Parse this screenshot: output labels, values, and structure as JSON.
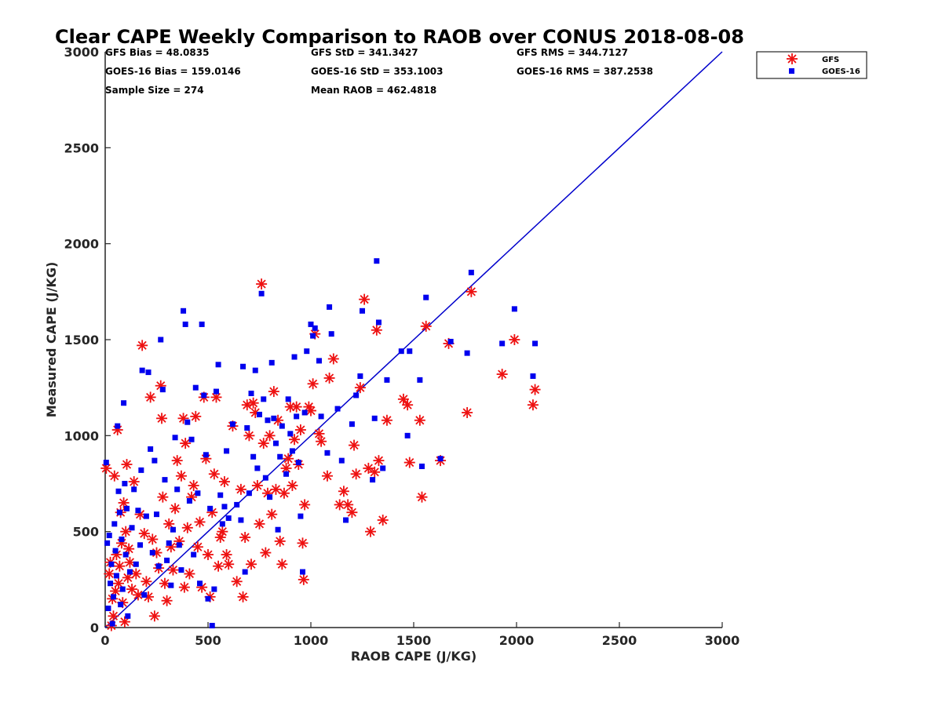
{
  "chart_data": {
    "type": "scatter",
    "title": "Clear CAPE Weekly Comparison to RAOB over CONUS 2018-08-08",
    "xlabel": "RAOB CAPE (J/KG)",
    "ylabel": "Measured CAPE (J/KG)",
    "xlim": [
      0,
      3000
    ],
    "ylim": [
      0,
      3000
    ],
    "xticks": [
      "0",
      "500",
      "1000",
      "1500",
      "2000",
      "2500",
      "3000"
    ],
    "yticks": [
      "0",
      "500",
      "1000",
      "1500",
      "2000",
      "2500",
      "3000"
    ],
    "grid": false,
    "legend_position": "top-right",
    "stats": [
      [
        "GFS Bias = 48.0835",
        "GFS StD = 341.3427",
        "GFS RMS = 344.7127"
      ],
      [
        "GOES-16 Bias = 159.0146",
        "GOES-16 StD = 353.1003",
        "GOES-16 RMS = 387.2538"
      ],
      [
        "Sample Size = 274",
        "Mean RAOB = 462.4818",
        ""
      ]
    ],
    "reference_line": {
      "x": [
        0,
        3000
      ],
      "y": [
        0,
        3000
      ],
      "color": "#0000cc"
    },
    "series": [
      {
        "name": "GFS",
        "marker": "asterisk",
        "color": "#ee1111",
        "points": [
          [
            5,
            830
          ],
          [
            20,
            280
          ],
          [
            25,
            340
          ],
          [
            30,
            10
          ],
          [
            35,
            150
          ],
          [
            40,
            60
          ],
          [
            45,
            790
          ],
          [
            50,
            190
          ],
          [
            55,
            380
          ],
          [
            60,
            1030
          ],
          [
            65,
            230
          ],
          [
            70,
            320
          ],
          [
            75,
            600
          ],
          [
            80,
            440
          ],
          [
            85,
            130
          ],
          [
            90,
            650
          ],
          [
            95,
            30
          ],
          [
            100,
            500
          ],
          [
            105,
            850
          ],
          [
            110,
            260
          ],
          [
            115,
            410
          ],
          [
            120,
            340
          ],
          [
            130,
            200
          ],
          [
            140,
            760
          ],
          [
            150,
            280
          ],
          [
            160,
            170
          ],
          [
            170,
            590
          ],
          [
            180,
            1470
          ],
          [
            190,
            490
          ],
          [
            200,
            240
          ],
          [
            210,
            160
          ],
          [
            220,
            1200
          ],
          [
            230,
            460
          ],
          [
            240,
            60
          ],
          [
            250,
            390
          ],
          [
            260,
            310
          ],
          [
            270,
            1260
          ],
          [
            275,
            1090
          ],
          [
            280,
            680
          ],
          [
            290,
            230
          ],
          [
            300,
            140
          ],
          [
            310,
            540
          ],
          [
            320,
            420
          ],
          [
            330,
            300
          ],
          [
            340,
            620
          ],
          [
            350,
            870
          ],
          [
            360,
            450
          ],
          [
            370,
            790
          ],
          [
            380,
            1090
          ],
          [
            385,
            210
          ],
          [
            390,
            960
          ],
          [
            400,
            520
          ],
          [
            410,
            280
          ],
          [
            420,
            680
          ],
          [
            430,
            740
          ],
          [
            440,
            1100
          ],
          [
            450,
            420
          ],
          [
            460,
            550
          ],
          [
            470,
            210
          ],
          [
            480,
            1200
          ],
          [
            490,
            880
          ],
          [
            500,
            380
          ],
          [
            510,
            160
          ],
          [
            520,
            600
          ],
          [
            530,
            800
          ],
          [
            540,
            1200
          ],
          [
            550,
            320
          ],
          [
            560,
            470
          ],
          [
            570,
            500
          ],
          [
            580,
            760
          ],
          [
            590,
            380
          ],
          [
            600,
            330
          ],
          [
            620,
            1050
          ],
          [
            640,
            240
          ],
          [
            660,
            720
          ],
          [
            670,
            160
          ],
          [
            680,
            470
          ],
          [
            690,
            1160
          ],
          [
            700,
            1000
          ],
          [
            710,
            330
          ],
          [
            720,
            1170
          ],
          [
            730,
            1120
          ],
          [
            740,
            740
          ],
          [
            750,
            540
          ],
          [
            760,
            1790
          ],
          [
            770,
            960
          ],
          [
            780,
            390
          ],
          [
            790,
            700
          ],
          [
            800,
            1000
          ],
          [
            810,
            590
          ],
          [
            820,
            1230
          ],
          [
            830,
            720
          ],
          [
            840,
            1080
          ],
          [
            850,
            450
          ],
          [
            860,
            330
          ],
          [
            870,
            700
          ],
          [
            880,
            830
          ],
          [
            890,
            880
          ],
          [
            900,
            1150
          ],
          [
            910,
            740
          ],
          [
            920,
            980
          ],
          [
            930,
            1150
          ],
          [
            940,
            850
          ],
          [
            950,
            1030
          ],
          [
            960,
            440
          ],
          [
            965,
            250
          ],
          [
            970,
            640
          ],
          [
            990,
            1150
          ],
          [
            1000,
            1130
          ],
          [
            1010,
            1270
          ],
          [
            1020,
            1530
          ],
          [
            1040,
            1010
          ],
          [
            1050,
            970
          ],
          [
            1080,
            790
          ],
          [
            1090,
            1300
          ],
          [
            1110,
            1400
          ],
          [
            1140,
            640
          ],
          [
            1160,
            710
          ],
          [
            1180,
            640
          ],
          [
            1200,
            600
          ],
          [
            1210,
            950
          ],
          [
            1220,
            800
          ],
          [
            1240,
            1250
          ],
          [
            1260,
            1710
          ],
          [
            1280,
            830
          ],
          [
            1290,
            500
          ],
          [
            1310,
            810
          ],
          [
            1320,
            1550
          ],
          [
            1330,
            870
          ],
          [
            1350,
            560
          ],
          [
            1370,
            1080
          ],
          [
            1450,
            1190
          ],
          [
            1470,
            1160
          ],
          [
            1480,
            860
          ],
          [
            1530,
            1080
          ],
          [
            1540,
            680
          ],
          [
            1560,
            1570
          ],
          [
            1630,
            870
          ],
          [
            1670,
            1480
          ],
          [
            1760,
            1120
          ],
          [
            1780,
            1750
          ],
          [
            1930,
            1320
          ],
          [
            1990,
            1500
          ],
          [
            2080,
            1160
          ],
          [
            2090,
            1240
          ]
        ]
      },
      {
        "name": "GOES-16",
        "marker": "square",
        "color": "#0000ee",
        "points": [
          [
            5,
            860
          ],
          [
            10,
            440
          ],
          [
            15,
            100
          ],
          [
            20,
            480
          ],
          [
            25,
            230
          ],
          [
            30,
            330
          ],
          [
            35,
            20
          ],
          [
            40,
            160
          ],
          [
            45,
            540
          ],
          [
            50,
            400
          ],
          [
            55,
            270
          ],
          [
            60,
            1050
          ],
          [
            65,
            710
          ],
          [
            70,
            600
          ],
          [
            75,
            120
          ],
          [
            80,
            460
          ],
          [
            85,
            200
          ],
          [
            90,
            1170
          ],
          [
            95,
            750
          ],
          [
            100,
            380
          ],
          [
            105,
            620
          ],
          [
            110,
            60
          ],
          [
            120,
            290
          ],
          [
            130,
            520
          ],
          [
            140,
            720
          ],
          [
            150,
            330
          ],
          [
            160,
            610
          ],
          [
            170,
            430
          ],
          [
            175,
            820
          ],
          [
            180,
            1340
          ],
          [
            190,
            170
          ],
          [
            200,
            580
          ],
          [
            210,
            1330
          ],
          [
            220,
            930
          ],
          [
            230,
            390
          ],
          [
            240,
            870
          ],
          [
            250,
            590
          ],
          [
            260,
            320
          ],
          [
            270,
            1500
          ],
          [
            280,
            1240
          ],
          [
            290,
            770
          ],
          [
            300,
            350
          ],
          [
            310,
            440
          ],
          [
            320,
            220
          ],
          [
            330,
            510
          ],
          [
            340,
            990
          ],
          [
            350,
            720
          ],
          [
            360,
            430
          ],
          [
            370,
            300
          ],
          [
            380,
            1650
          ],
          [
            390,
            1580
          ],
          [
            400,
            1070
          ],
          [
            410,
            660
          ],
          [
            420,
            980
          ],
          [
            430,
            380
          ],
          [
            440,
            1250
          ],
          [
            450,
            700
          ],
          [
            460,
            230
          ],
          [
            470,
            1580
          ],
          [
            480,
            1210
          ],
          [
            490,
            900
          ],
          [
            500,
            150
          ],
          [
            510,
            620
          ],
          [
            520,
            10
          ],
          [
            530,
            200
          ],
          [
            540,
            1230
          ],
          [
            550,
            1370
          ],
          [
            560,
            690
          ],
          [
            570,
            540
          ],
          [
            580,
            630
          ],
          [
            590,
            920
          ],
          [
            600,
            570
          ],
          [
            620,
            1060
          ],
          [
            640,
            640
          ],
          [
            660,
            560
          ],
          [
            670,
            1360
          ],
          [
            680,
            290
          ],
          [
            690,
            1040
          ],
          [
            700,
            700
          ],
          [
            710,
            1220
          ],
          [
            720,
            890
          ],
          [
            730,
            1340
          ],
          [
            740,
            830
          ],
          [
            750,
            1110
          ],
          [
            760,
            1740
          ],
          [
            770,
            1190
          ],
          [
            780,
            780
          ],
          [
            790,
            1080
          ],
          [
            800,
            680
          ],
          [
            810,
            1380
          ],
          [
            820,
            1090
          ],
          [
            830,
            960
          ],
          [
            840,
            510
          ],
          [
            850,
            890
          ],
          [
            860,
            1050
          ],
          [
            880,
            800
          ],
          [
            890,
            1190
          ],
          [
            900,
            1010
          ],
          [
            910,
            920
          ],
          [
            920,
            1410
          ],
          [
            930,
            1100
          ],
          [
            940,
            860
          ],
          [
            950,
            580
          ],
          [
            960,
            290
          ],
          [
            970,
            1120
          ],
          [
            980,
            1440
          ],
          [
            1000,
            1580
          ],
          [
            1010,
            1520
          ],
          [
            1020,
            1560
          ],
          [
            1040,
            1390
          ],
          [
            1050,
            1100
          ],
          [
            1080,
            910
          ],
          [
            1090,
            1670
          ],
          [
            1100,
            1530
          ],
          [
            1130,
            1140
          ],
          [
            1150,
            870
          ],
          [
            1170,
            560
          ],
          [
            1200,
            1060
          ],
          [
            1220,
            1210
          ],
          [
            1240,
            1310
          ],
          [
            1250,
            1650
          ],
          [
            1300,
            770
          ],
          [
            1310,
            1090
          ],
          [
            1320,
            1910
          ],
          [
            1330,
            1590
          ],
          [
            1350,
            830
          ],
          [
            1370,
            1290
          ],
          [
            1440,
            1440
          ],
          [
            1470,
            1000
          ],
          [
            1480,
            1440
          ],
          [
            1530,
            1290
          ],
          [
            1540,
            840
          ],
          [
            1560,
            1720
          ],
          [
            1630,
            880
          ],
          [
            1680,
            1490
          ],
          [
            1760,
            1430
          ],
          [
            1780,
            1850
          ],
          [
            1930,
            1480
          ],
          [
            1990,
            1660
          ],
          [
            2080,
            1310
          ],
          [
            2090,
            1480
          ]
        ]
      }
    ]
  }
}
